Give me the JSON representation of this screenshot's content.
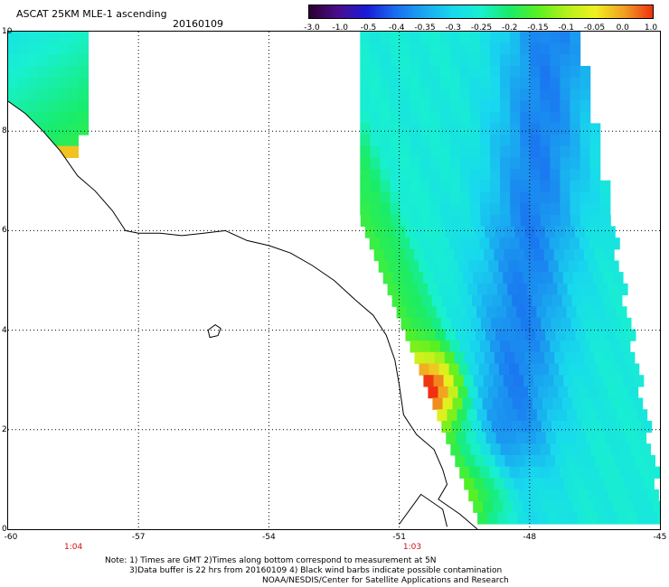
{
  "header": {
    "title": "ASCAT 25KM MLE-1 ascending",
    "date": "20160109"
  },
  "colorbar": {
    "labels": [
      "-3.0",
      "-1.0",
      "-0.5",
      "-0.4",
      "-0.35",
      "-0.3",
      "-0.25",
      "-0.2",
      "-0.15",
      "-0.1",
      "-0.05",
      "0.0",
      "1.0"
    ],
    "colors": [
      "#2a0030",
      "#4a0c8c",
      "#1a1ad8",
      "#1a6cf0",
      "#1aa6f0",
      "#18d8ee",
      "#18f0d0",
      "#18ec6a",
      "#5af020",
      "#b6f01a",
      "#f0f020",
      "#f0a020",
      "#f03010"
    ]
  },
  "map": {
    "x_ticks": [
      "-60",
      "-57",
      "-54",
      "-51",
      "-48",
      "-45"
    ],
    "y_ticks": [
      "10",
      "8",
      "6",
      "4",
      "2",
      "0"
    ],
    "pass_times": [
      {
        "label": "1:04",
        "lon": -58.5
      },
      {
        "label": "1:03",
        "lon": -50.7
      }
    ],
    "lon_range": [
      -60,
      -45
    ],
    "lat_range": [
      0,
      10
    ],
    "land_color": "#ffffff",
    "coast_color": "#000000"
  },
  "footer": {
    "note_line1": "Note: 1) Times are GMT 2)Times along bottom correspond to measurement at 5N",
    "note_line2": "3)Data buffer is 22 hrs from 20160109 4) Black wind barbs indicate possible contamination",
    "credit": "NOAA/NESDIS/Center for Satellite Applications and Research"
  }
}
